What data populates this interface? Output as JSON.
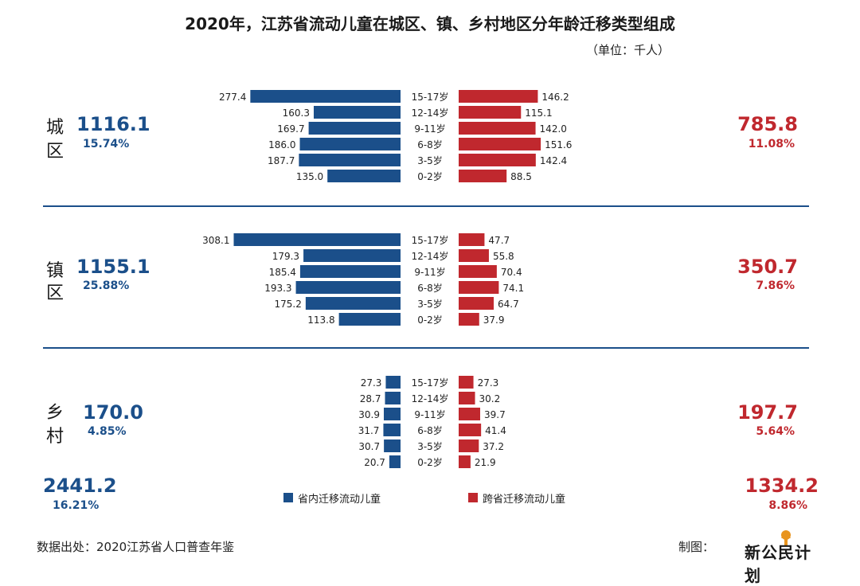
{
  "title": "2020年，江苏省流动儿童在城区、镇、乡村地区分年龄迁移类型组成",
  "unit": "（单位：千人）",
  "colors": {
    "intra": "#1b4f8a",
    "inter": "#c0282e"
  },
  "chart_data": {
    "type": "bar",
    "age_groups": [
      "15-17岁",
      "12-14岁",
      "9-11岁",
      "6-8岁",
      "3-5岁",
      "0-2岁"
    ],
    "series_names": [
      "省内迁移流动儿童",
      "跨省迁移流动儿童"
    ],
    "regions": [
      {
        "label_chars": [
          "城",
          "区"
        ],
        "intra_total": "1116.1",
        "intra_pct": "15.74%",
        "inter_total": "785.8",
        "inter_pct": "11.08%",
        "intra": [
          277.4,
          160.3,
          169.7,
          186.0,
          187.7,
          135.0
        ],
        "inter": [
          146.2,
          115.1,
          142.0,
          151.6,
          142.4,
          88.5
        ]
      },
      {
        "label_chars": [
          "镇",
          "区"
        ],
        "intra_total": "1155.1",
        "intra_pct": "25.88%",
        "inter_total": "350.7",
        "inter_pct": "7.86%",
        "intra": [
          308.1,
          179.3,
          185.4,
          193.3,
          175.2,
          113.8
        ],
        "inter": [
          47.7,
          55.8,
          70.4,
          74.1,
          64.7,
          37.9
        ]
      },
      {
        "label_chars": [
          "乡",
          "村"
        ],
        "intra_total": "170.0",
        "intra_pct": "4.85%",
        "inter_total": "197.7",
        "inter_pct": "5.64%",
        "intra": [
          27.3,
          28.7,
          30.9,
          31.7,
          30.7,
          20.7
        ],
        "inter": [
          27.3,
          30.2,
          39.7,
          41.4,
          37.2,
          21.9
        ]
      }
    ],
    "grand_totals": {
      "intra_total": "2441.2",
      "intra_pct": "16.21%",
      "inter_total": "1334.2",
      "inter_pct": "8.86%"
    }
  },
  "legend": {
    "intra_label": "省内迁移流动儿童",
    "inter_label": "跨省迁移流动儿童"
  },
  "footer": {
    "source": "数据出处：2020江苏省人口普查年鉴",
    "maker_label": "制图：",
    "logo_text": "新公民计划"
  }
}
